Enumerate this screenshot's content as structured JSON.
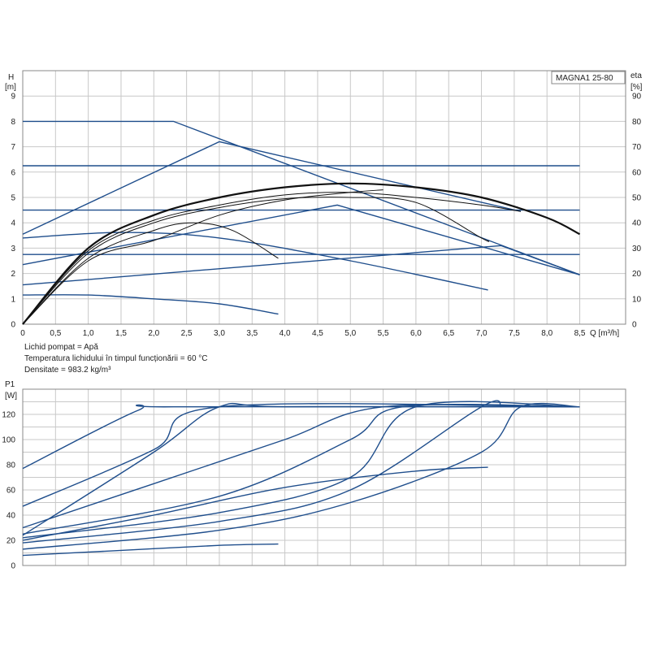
{
  "chart_data": [
    {
      "type": "line",
      "legend_box": "MAGNA1 25-80",
      "y_left_label": [
        "H",
        "[m]"
      ],
      "y_right_label": [
        "eta",
        "[%]"
      ],
      "x_label": "Q [m³/h]",
      "x_ticks": [
        "0",
        "0,5",
        "1,0",
        "1,5",
        "2,0",
        "2,5",
        "3,0",
        "3,5",
        "4,0",
        "4,5",
        "5,0",
        "5,5",
        "6,0",
        "6,5",
        "7,0",
        "7,5",
        "8,0",
        "8,5"
      ],
      "y_left_ticks": [
        "0",
        "1",
        "2",
        "3",
        "4",
        "5",
        "6",
        "7",
        "8",
        "9"
      ],
      "y_right_ticks": [
        "0",
        "10",
        "20",
        "30",
        "40",
        "50",
        "60",
        "70",
        "80",
        "90"
      ],
      "xlim": [
        0,
        9.2
      ],
      "ylim": [
        0,
        10
      ],
      "grid": true,
      "head_curves": [
        {
          "x": [
            0,
            2.3,
            8.5
          ],
          "y": [
            8,
            8,
            1.95
          ]
        },
        {
          "x": [
            0,
            8.5
          ],
          "y": [
            6.25,
            6.25
          ]
        },
        {
          "x": [
            0,
            8.5
          ],
          "y": [
            4.5,
            4.5
          ]
        },
        {
          "x": [
            0,
            8.5
          ],
          "y": [
            2.75,
            2.75
          ]
        },
        {
          "x": [
            0,
            3.0,
            7.6
          ],
          "y": [
            3.55,
            7.2,
            4.45
          ]
        },
        {
          "x": [
            0,
            4.8,
            8.5
          ],
          "y": [
            2.35,
            4.7,
            1.95
          ]
        },
        {
          "x": [
            0,
            7.3,
            8.5
          ],
          "y": [
            1.55,
            3.1,
            1.95
          ]
        },
        {
          "x": [
            0,
            1.5,
            3.0,
            5.0,
            7.1
          ],
          "y": [
            3.4,
            3.62,
            3.4,
            2.5,
            1.35
          ]
        },
        {
          "x": [
            0,
            1.0,
            2.0,
            3.0,
            3.9
          ],
          "y": [
            1.15,
            1.15,
            1.0,
            0.8,
            0.4
          ]
        }
      ],
      "efficiency_curves": [
        {
          "x": [
            0,
            1,
            2,
            3,
            4,
            5,
            6,
            7,
            8,
            8.5
          ],
          "y": [
            0,
            3.0,
            4.3,
            5.0,
            5.4,
            5.55,
            5.4,
            5.0,
            4.2,
            3.55
          ]
        },
        {
          "x": [
            0,
            1,
            2,
            3,
            4,
            5,
            6,
            7,
            7.6
          ],
          "y": [
            0,
            2.9,
            4.1,
            4.7,
            5.1,
            5.2,
            5.0,
            4.7,
            4.45
          ]
        },
        {
          "x": [
            0,
            1,
            2,
            3,
            4,
            5,
            6,
            7,
            7.1
          ],
          "y": [
            0,
            2.8,
            4.0,
            4.6,
            4.95,
            5.0,
            4.8,
            3.4,
            3.3
          ]
        },
        {
          "x": [
            0,
            1,
            2,
            2.6,
            3.2,
            3.9
          ],
          "y": [
            0,
            2.6,
            3.7,
            4.0,
            3.7,
            2.6
          ]
        },
        {
          "x": [
            0,
            1,
            2,
            3,
            4,
            5,
            5.5
          ],
          "y": [
            0,
            2.5,
            3.3,
            4.3,
            4.9,
            5.2,
            5.3
          ]
        }
      ]
    },
    {
      "type": "line",
      "y_label": [
        "P1",
        "[W]"
      ],
      "y_ticks": [
        "0",
        "20",
        "40",
        "60",
        "80",
        "100",
        "120"
      ],
      "xlim": [
        0,
        9.2
      ],
      "ylim": [
        0,
        140
      ],
      "grid": true,
      "series": [
        {
          "x": [
            0,
            1.75,
            2.3,
            8.5
          ],
          "y": [
            77,
            123,
            126,
            126
          ]
        },
        {
          "x": [
            0,
            2.0,
            3.0,
            8.5
          ],
          "y": [
            47,
            92,
            126,
            126
          ]
        },
        {
          "x": [
            0,
            2.0,
            3.0,
            4.0,
            8.5
          ],
          "y": [
            24,
            90,
            126,
            126,
            126
          ]
        },
        {
          "x": [
            0,
            2.0,
            4.0,
            5.5,
            8.5
          ],
          "y": [
            30,
            65,
            100,
            126,
            126
          ]
        },
        {
          "x": [
            0,
            3.0,
            5.0,
            5.8,
            8.5
          ],
          "y": [
            25,
            55,
            100,
            126,
            126
          ]
        },
        {
          "x": [
            0,
            3.0,
            5.0,
            6.0,
            8.5
          ],
          "y": [
            22,
            42,
            70,
            126,
            126
          ]
        },
        {
          "x": [
            0,
            3.0,
            5.0,
            7.0,
            7.3
          ],
          "y": [
            18,
            35,
            60,
            126,
            126
          ]
        },
        {
          "x": [
            0,
            3.0,
            5.0,
            7.0,
            7.6,
            8.5
          ],
          "y": [
            13,
            28,
            50,
            90,
            126,
            126
          ]
        },
        {
          "x": [
            0,
            2.0,
            4.0,
            6.0,
            7.1
          ],
          "y": [
            20,
            40,
            62,
            75,
            78
          ]
        },
        {
          "x": [
            0,
            1.5,
            3.0,
            3.9
          ],
          "y": [
            8,
            12,
            16,
            17
          ]
        }
      ]
    }
  ],
  "fluid_info": [
    "Lichid pompat = Apă",
    "Temperatura lichidului în timpul funcționării = 60 °C",
    "Densitate = 983.2 kg/m³"
  ]
}
